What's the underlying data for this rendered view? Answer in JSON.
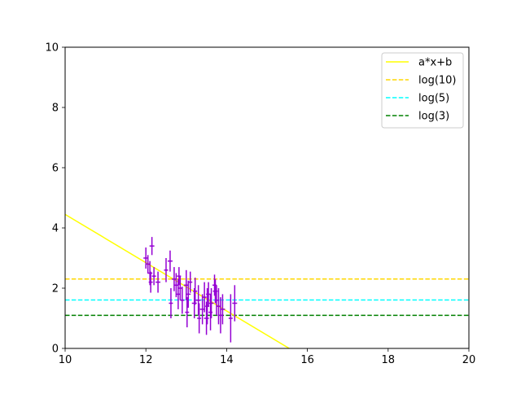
{
  "chart_data": {
    "type": "scatter",
    "title": "",
    "xlabel": "",
    "ylabel": "",
    "xlim": [
      10,
      20
    ],
    "ylim": [
      0,
      10
    ],
    "xticks": [
      "10",
      "12",
      "14",
      "16",
      "18",
      "20"
    ],
    "yticks": [
      "0",
      "2",
      "4",
      "6",
      "8",
      "10"
    ],
    "grid": false,
    "legend_position": "top-right",
    "legend": [
      {
        "label": "a*x+b",
        "color": "#ffff00",
        "style": "solid"
      },
      {
        "label": "log(10)",
        "color": "#ffd700",
        "style": "dashed"
      },
      {
        "label": "log(5)",
        "color": "#00ffff",
        "style": "dashed"
      },
      {
        "label": "log(3)",
        "color": "#008000",
        "style": "dashed"
      }
    ],
    "fit_line": {
      "label": "a*x+b",
      "x0": 10,
      "y0": 4.45,
      "x1": 15.55,
      "y1": 0,
      "color": "#ffff00"
    },
    "hlines": [
      {
        "label": "log(10)",
        "y": 2.303,
        "color": "#ffd700"
      },
      {
        "label": "log(5)",
        "y": 1.609,
        "color": "#00ffff"
      },
      {
        "label": "log(3)",
        "y": 1.099,
        "color": "#008000"
      }
    ],
    "points_color": "#9400d3",
    "points": [
      {
        "x": 12.0,
        "y": 3.0,
        "yerr": 0.35,
        "xerr": 0.06
      },
      {
        "x": 12.05,
        "y": 2.8,
        "yerr": 0.3,
        "xerr": 0.05
      },
      {
        "x": 12.1,
        "y": 2.5,
        "yerr": 0.4,
        "xerr": 0.06
      },
      {
        "x": 12.12,
        "y": 2.2,
        "yerr": 0.35,
        "xerr": 0.05
      },
      {
        "x": 12.15,
        "y": 3.4,
        "yerr": 0.3,
        "xerr": 0.06
      },
      {
        "x": 12.2,
        "y": 2.4,
        "yerr": 0.3,
        "xerr": 0.05
      },
      {
        "x": 12.3,
        "y": 2.2,
        "yerr": 0.35,
        "xerr": 0.06
      },
      {
        "x": 12.5,
        "y": 2.6,
        "yerr": 0.4,
        "xerr": 0.05
      },
      {
        "x": 12.6,
        "y": 2.9,
        "yerr": 0.35,
        "xerr": 0.06
      },
      {
        "x": 12.62,
        "y": 1.5,
        "yerr": 0.5,
        "xerr": 0.05
      },
      {
        "x": 12.7,
        "y": 2.3,
        "yerr": 0.4,
        "xerr": 0.06
      },
      {
        "x": 12.75,
        "y": 2.1,
        "yerr": 0.4,
        "xerr": 0.05
      },
      {
        "x": 12.8,
        "y": 1.8,
        "yerr": 0.5,
        "xerr": 0.06
      },
      {
        "x": 12.82,
        "y": 2.4,
        "yerr": 0.3,
        "xerr": 0.05
      },
      {
        "x": 12.85,
        "y": 2.0,
        "yerr": 0.4,
        "xerr": 0.06
      },
      {
        "x": 12.9,
        "y": 1.6,
        "yerr": 0.45,
        "xerr": 0.05
      },
      {
        "x": 13.0,
        "y": 2.1,
        "yerr": 0.5,
        "xerr": 0.06
      },
      {
        "x": 13.02,
        "y": 1.2,
        "yerr": 0.5,
        "xerr": 0.05
      },
      {
        "x": 13.05,
        "y": 1.8,
        "yerr": 0.45,
        "xerr": 0.06
      },
      {
        "x": 13.1,
        "y": 2.2,
        "yerr": 0.35,
        "xerr": 0.05
      },
      {
        "x": 13.2,
        "y": 1.5,
        "yerr": 0.5,
        "xerr": 0.06
      },
      {
        "x": 13.22,
        "y": 1.9,
        "yerr": 0.45,
        "xerr": 0.05
      },
      {
        "x": 13.3,
        "y": 1.6,
        "yerr": 0.5,
        "xerr": 0.06
      },
      {
        "x": 13.32,
        "y": 1.0,
        "yerr": 0.5,
        "xerr": 0.05
      },
      {
        "x": 13.4,
        "y": 1.3,
        "yerr": 0.5,
        "xerr": 0.06
      },
      {
        "x": 13.45,
        "y": 1.7,
        "yerr": 0.5,
        "xerr": 0.05
      },
      {
        "x": 13.5,
        "y": 1.0,
        "yerr": 0.55,
        "xerr": 0.06
      },
      {
        "x": 13.52,
        "y": 1.4,
        "yerr": 0.6,
        "xerr": 0.05
      },
      {
        "x": 13.55,
        "y": 1.8,
        "yerr": 0.4,
        "xerr": 0.06
      },
      {
        "x": 13.6,
        "y": 1.2,
        "yerr": 0.6,
        "xerr": 0.05
      },
      {
        "x": 13.62,
        "y": 1.5,
        "yerr": 0.5,
        "xerr": 0.06
      },
      {
        "x": 13.7,
        "y": 2.1,
        "yerr": 0.35,
        "xerr": 0.05
      },
      {
        "x": 13.72,
        "y": 1.9,
        "yerr": 0.4,
        "xerr": 0.06
      },
      {
        "x": 13.75,
        "y": 1.6,
        "yerr": 0.5,
        "xerr": 0.05
      },
      {
        "x": 13.8,
        "y": 1.4,
        "yerr": 0.6,
        "xerr": 0.06
      },
      {
        "x": 13.85,
        "y": 1.1,
        "yerr": 0.6,
        "xerr": 0.05
      },
      {
        "x": 13.9,
        "y": 1.3,
        "yerr": 0.5,
        "xerr": 0.06
      },
      {
        "x": 14.1,
        "y": 1.0,
        "yerr": 0.8,
        "xerr": 0.05
      },
      {
        "x": 14.2,
        "y": 1.5,
        "yerr": 0.6,
        "xerr": 0.06
      }
    ]
  }
}
